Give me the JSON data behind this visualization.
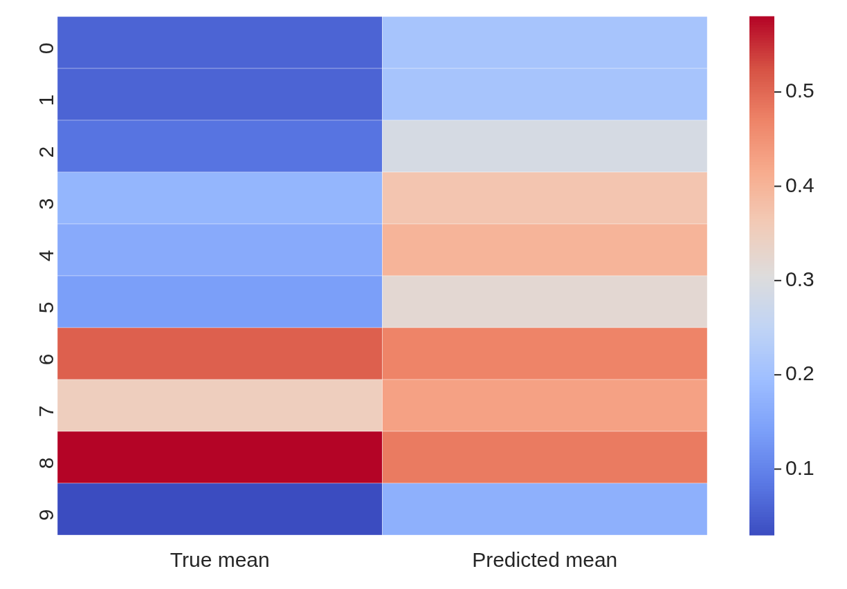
{
  "chart_data": {
    "type": "heatmap",
    "categories": [
      "True mean",
      "Predicted mean"
    ],
    "y_categories": [
      "0",
      "1",
      "2",
      "3",
      "4",
      "5",
      "6",
      "7",
      "8",
      "9"
    ],
    "cells": [
      [
        0.06,
        0.21
      ],
      [
        0.06,
        0.21
      ],
      [
        0.08,
        0.29
      ],
      [
        0.18,
        0.37
      ],
      [
        0.16,
        0.4
      ],
      [
        0.14,
        0.32
      ],
      [
        0.51,
        0.47
      ],
      [
        0.35,
        0.43
      ],
      [
        0.58,
        0.48
      ],
      [
        0.03,
        0.17
      ]
    ],
    "clim": [
      0.03,
      0.58
    ],
    "cticks": [
      0.1,
      0.2,
      0.3,
      0.4,
      0.5
    ]
  }
}
